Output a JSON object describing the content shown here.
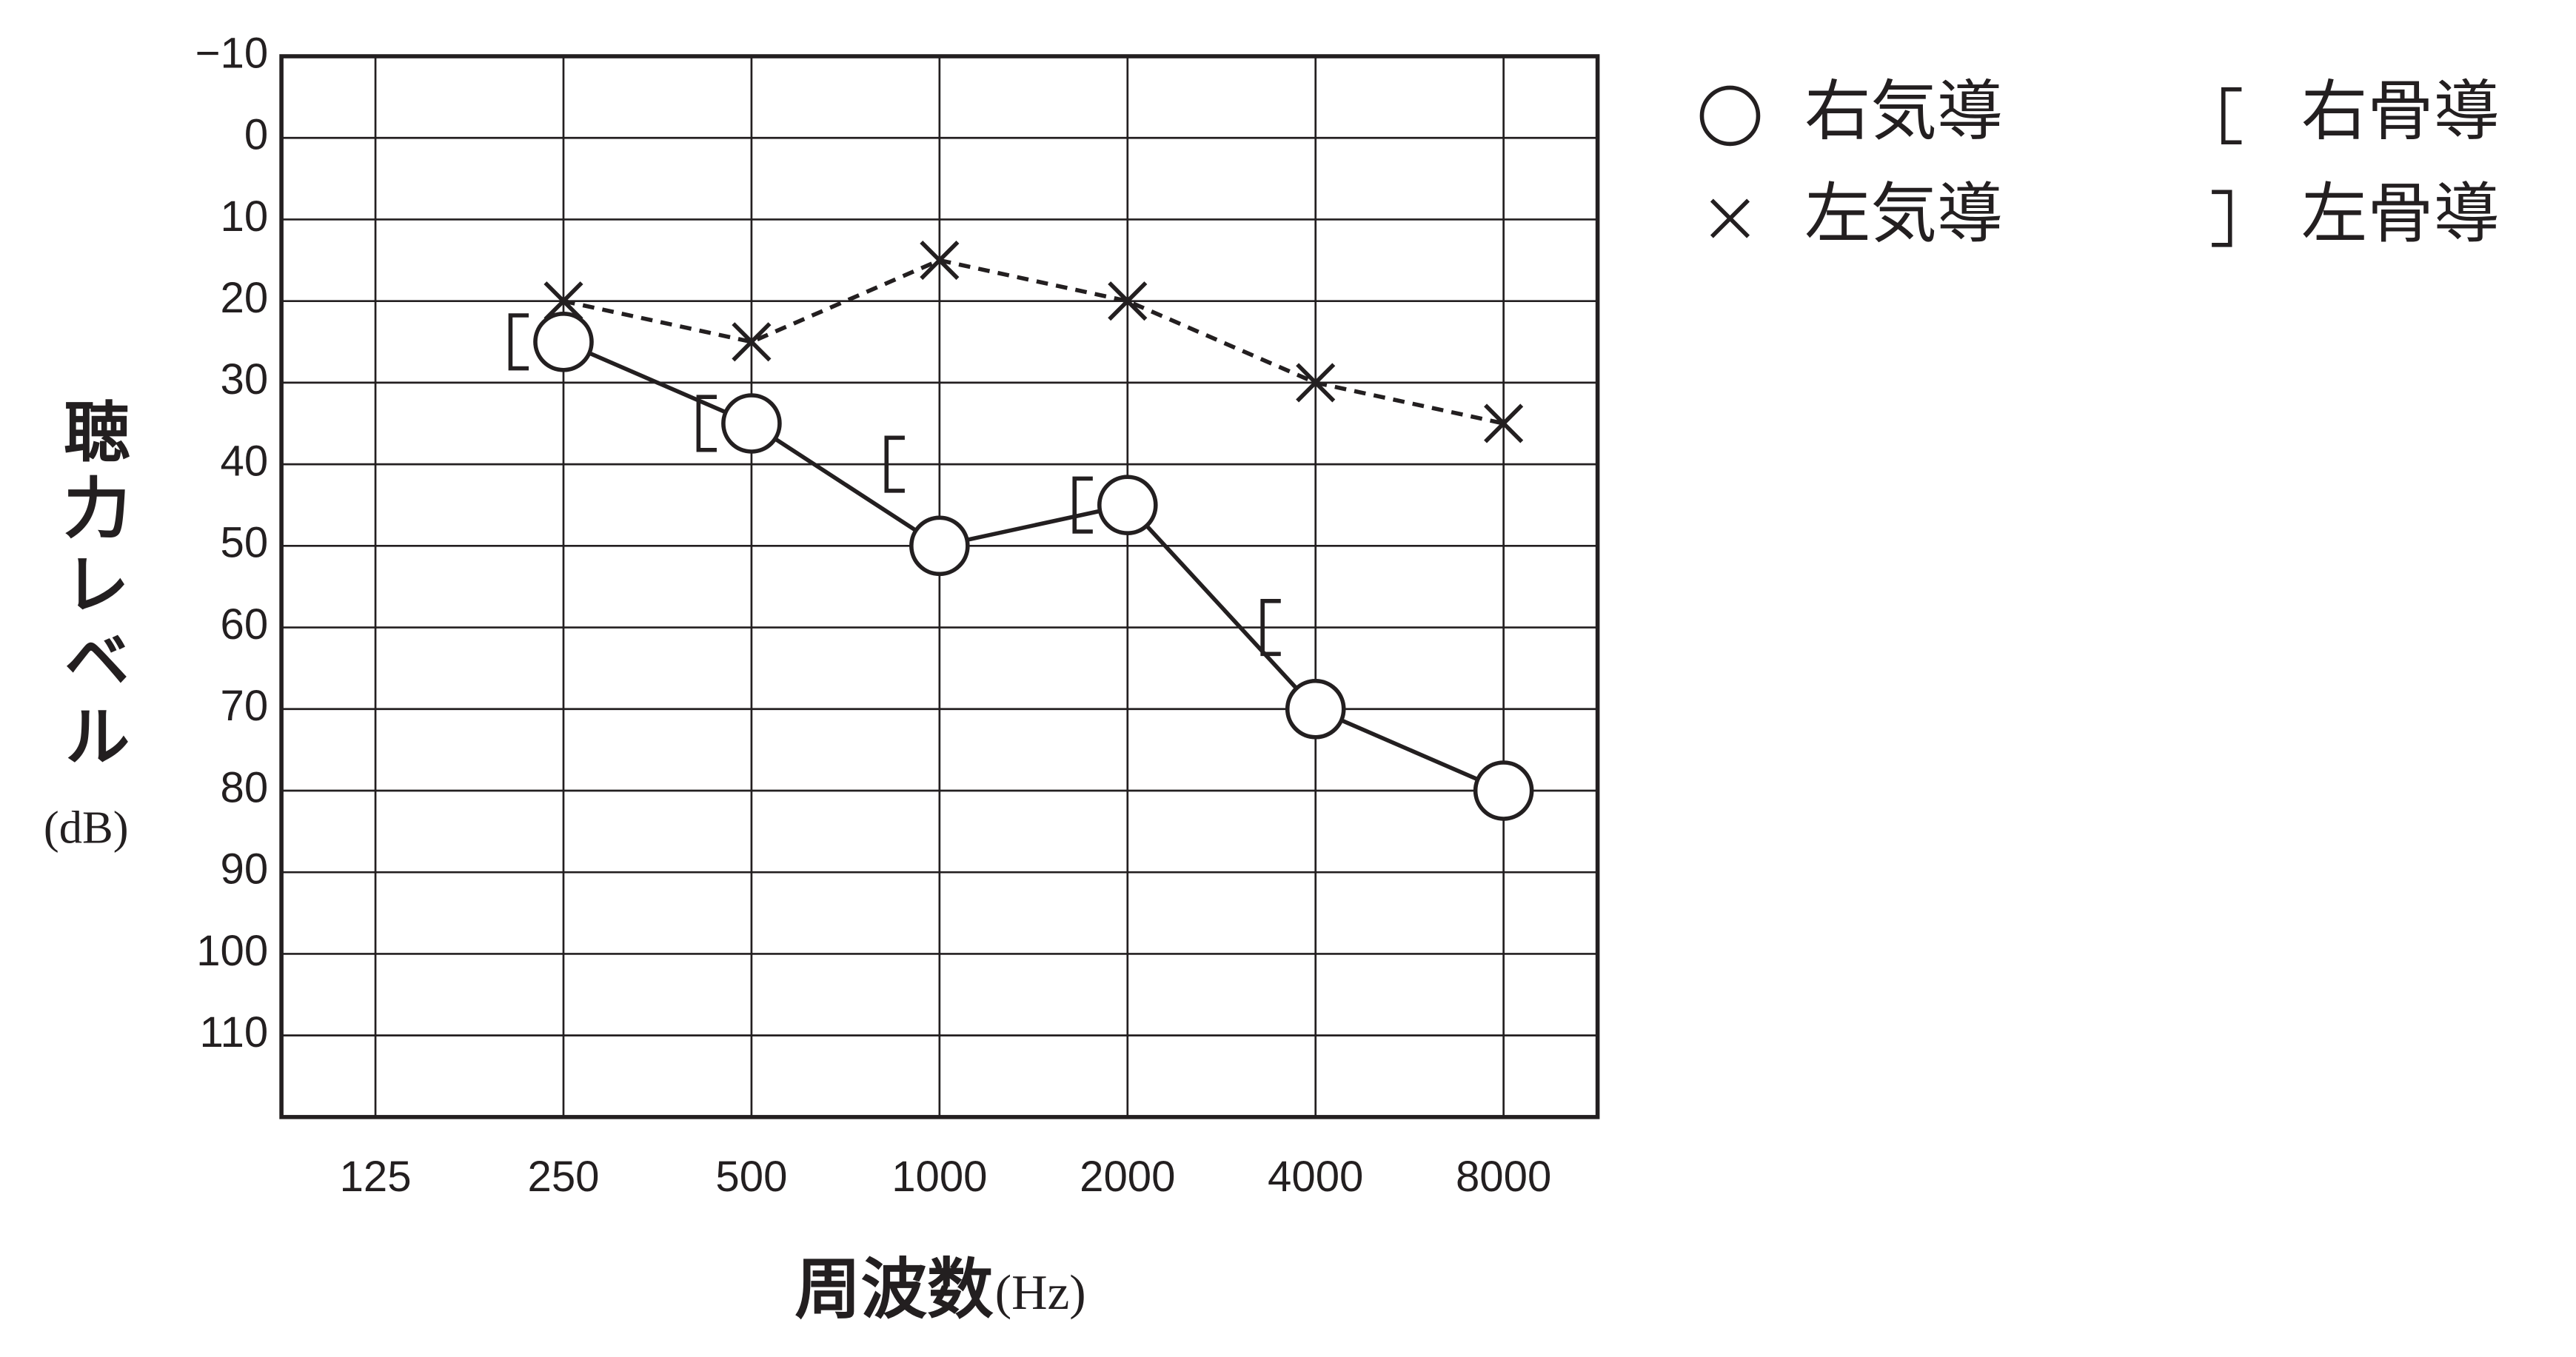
{
  "chart_data": {
    "type": "line",
    "y_label": "聴力レベル",
    "y_unit": "(dB)",
    "x_label": "周波数",
    "x_unit": "(Hz)",
    "categories": [
      "125",
      "250",
      "500",
      "1000",
      "2000",
      "4000",
      "8000"
    ],
    "ylim": [
      -10,
      120
    ],
    "y_inverted": true,
    "yticks": [
      {
        "value": -10,
        "label": "−10"
      },
      0,
      10,
      20,
      30,
      40,
      50,
      60,
      70,
      80,
      90,
      100,
      110
    ],
    "grid": true,
    "series": [
      {
        "name": "右気導",
        "marker": "circle",
        "line": "solid",
        "color": "#231f20",
        "values": [
          null,
          25,
          35,
          50,
          45,
          70,
          80
        ]
      },
      {
        "name": "左気導",
        "marker": "x",
        "line": "dashed",
        "color": "#231f20",
        "values": [
          null,
          20,
          25,
          15,
          20,
          30,
          35
        ]
      },
      {
        "name": "右骨導",
        "marker": "[",
        "line": "none",
        "color": "#231f20",
        "values": [
          null,
          25,
          35,
          40,
          45,
          60,
          null
        ]
      },
      {
        "name": "左骨導",
        "marker": "]",
        "line": "none",
        "color": "#231f20",
        "values": [
          null,
          null,
          null,
          null,
          null,
          null,
          null
        ]
      }
    ]
  }
}
